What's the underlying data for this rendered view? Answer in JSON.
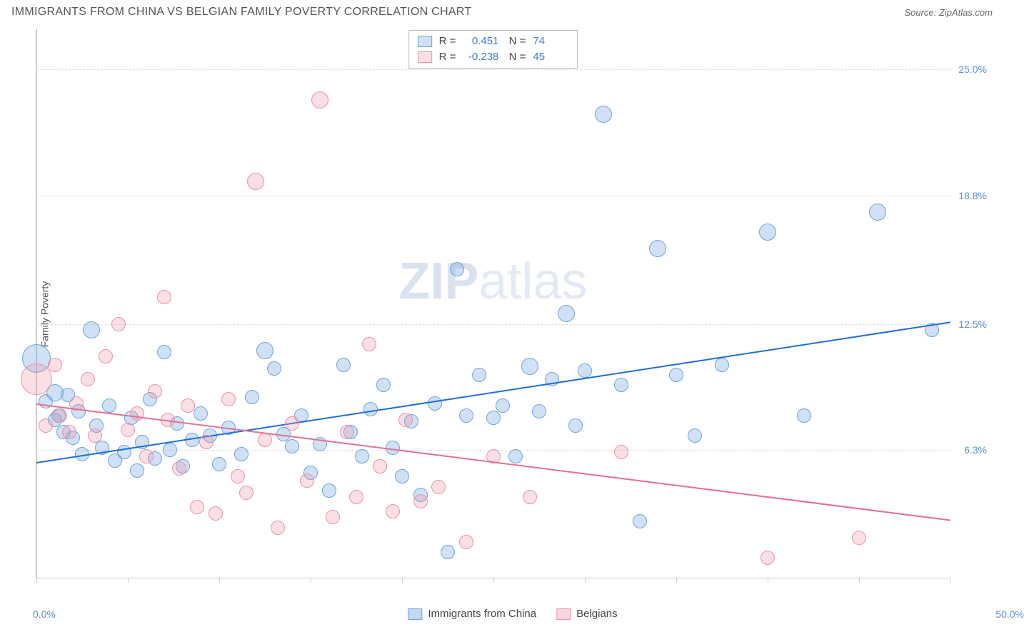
{
  "header": {
    "title": "IMMIGRANTS FROM CHINA VS BELGIAN FAMILY POVERTY CORRELATION CHART",
    "source_label": "Source: ",
    "source_value": "ZipAtlas.com"
  },
  "chart": {
    "type": "scatter",
    "ylabel": "Family Poverty",
    "xlim": [
      0,
      50
    ],
    "ylim": [
      0,
      27
    ],
    "xlim_labels": [
      "0.0%",
      "50.0%"
    ],
    "ytick_positions": [
      6.3,
      12.5,
      18.8,
      25.0
    ],
    "ytick_labels": [
      "6.3%",
      "12.5%",
      "18.8%",
      "25.0%"
    ],
    "xtick_positions": [
      0,
      5,
      10,
      15,
      20,
      25,
      30,
      35,
      40,
      45,
      50
    ],
    "background_color": "#ffffff",
    "grid_color": "#dddddd",
    "axis_color": "#cccccc",
    "tick_label_color": "#5b8fd6",
    "watermark": "ZIPatlas",
    "series": [
      {
        "name": "Immigrants from China",
        "fill_color": "rgba(120,170,225,0.35)",
        "stroke_color": "#6aa5de",
        "r_label": "R =",
        "r_value": "0.451",
        "n_label": "N =",
        "n_value": "74",
        "trend": {
          "x1": 0,
          "y1": 5.7,
          "x2": 50,
          "y2": 12.6,
          "color": "#1f6fd4",
          "width": 2
        },
        "points": [
          [
            0,
            10.8,
            20
          ],
          [
            0.5,
            8.7,
            10
          ],
          [
            1,
            9.1,
            12
          ],
          [
            1,
            7.8,
            10
          ],
          [
            1.2,
            8.0,
            10
          ],
          [
            1.5,
            7.2,
            10
          ],
          [
            1.7,
            9.0,
            10
          ],
          [
            2,
            6.9,
            10
          ],
          [
            2.3,
            8.2,
            10
          ],
          [
            2.5,
            6.1,
            10
          ],
          [
            3,
            12.2,
            12
          ],
          [
            3.3,
            7.5,
            10
          ],
          [
            3.6,
            6.4,
            10
          ],
          [
            4,
            8.5,
            10
          ],
          [
            4.3,
            5.8,
            10
          ],
          [
            4.8,
            6.2,
            10
          ],
          [
            5.2,
            7.9,
            10
          ],
          [
            5.5,
            5.3,
            10
          ],
          [
            5.8,
            6.7,
            10
          ],
          [
            6.2,
            8.8,
            10
          ],
          [
            6.5,
            5.9,
            10
          ],
          [
            7,
            11.1,
            10
          ],
          [
            7.3,
            6.3,
            10
          ],
          [
            7.7,
            7.6,
            10
          ],
          [
            8,
            5.5,
            10
          ],
          [
            8.5,
            6.8,
            10
          ],
          [
            9,
            8.1,
            10
          ],
          [
            9.5,
            7.0,
            10
          ],
          [
            10,
            5.6,
            10
          ],
          [
            10.5,
            7.4,
            10
          ],
          [
            11.2,
            6.1,
            10
          ],
          [
            11.8,
            8.9,
            10
          ],
          [
            12.5,
            11.2,
            12
          ],
          [
            13,
            10.3,
            10
          ],
          [
            13.5,
            7.1,
            10
          ],
          [
            14,
            6.5,
            10
          ],
          [
            14.5,
            8.0,
            10
          ],
          [
            15,
            5.2,
            10
          ],
          [
            15.5,
            6.6,
            10
          ],
          [
            16,
            4.3,
            10
          ],
          [
            16.8,
            10.5,
            10
          ],
          [
            17.2,
            7.2,
            10
          ],
          [
            17.8,
            6.0,
            10
          ],
          [
            18.3,
            8.3,
            10
          ],
          [
            19,
            9.5,
            10
          ],
          [
            19.5,
            6.4,
            10
          ],
          [
            20,
            5.0,
            10
          ],
          [
            20.5,
            7.7,
            10
          ],
          [
            21,
            4.1,
            10
          ],
          [
            21.8,
            8.6,
            10
          ],
          [
            22.5,
            1.3,
            10
          ],
          [
            23,
            15.2,
            10
          ],
          [
            23.5,
            8.0,
            10
          ],
          [
            24.2,
            10.0,
            10
          ],
          [
            25,
            7.9,
            10
          ],
          [
            25.5,
            8.5,
            10
          ],
          [
            26.2,
            6.0,
            10
          ],
          [
            27,
            10.4,
            12
          ],
          [
            27.5,
            8.2,
            10
          ],
          [
            28.2,
            9.8,
            10
          ],
          [
            29,
            13.0,
            12
          ],
          [
            29.5,
            7.5,
            10
          ],
          [
            30,
            10.2,
            10
          ],
          [
            31,
            22.8,
            12
          ],
          [
            32,
            9.5,
            10
          ],
          [
            33,
            2.8,
            10
          ],
          [
            34,
            16.2,
            12
          ],
          [
            35,
            10.0,
            10
          ],
          [
            36,
            7.0,
            10
          ],
          [
            37.5,
            10.5,
            10
          ],
          [
            40,
            17.0,
            12
          ],
          [
            42,
            8.0,
            10
          ],
          [
            46,
            18.0,
            12
          ],
          [
            49,
            12.2,
            10
          ]
        ]
      },
      {
        "name": "Belgians",
        "fill_color": "rgba(240,150,170,0.30)",
        "stroke_color": "#e893aa",
        "r_label": "R =",
        "r_value": "-0.238",
        "n_label": "N =",
        "n_value": "45",
        "trend": {
          "x1": 0,
          "y1": 8.6,
          "x2": 50,
          "y2": 2.9,
          "color": "#e4718f",
          "width": 2
        },
        "points": [
          [
            0,
            9.8,
            22
          ],
          [
            0.5,
            7.5,
            10
          ],
          [
            1,
            10.5,
            10
          ],
          [
            1.3,
            8.0,
            10
          ],
          [
            1.8,
            7.2,
            10
          ],
          [
            2.2,
            8.6,
            10
          ],
          [
            2.8,
            9.8,
            10
          ],
          [
            3.2,
            7.0,
            10
          ],
          [
            3.8,
            10.9,
            10
          ],
          [
            4.5,
            12.5,
            10
          ],
          [
            5,
            7.3,
            10
          ],
          [
            5.5,
            8.1,
            10
          ],
          [
            6,
            6.0,
            10
          ],
          [
            6.5,
            9.2,
            10
          ],
          [
            7,
            13.8,
            10
          ],
          [
            7.2,
            7.8,
            10
          ],
          [
            7.8,
            5.4,
            10
          ],
          [
            8.3,
            8.5,
            10
          ],
          [
            8.8,
            3.5,
            10
          ],
          [
            9.3,
            6.7,
            10
          ],
          [
            9.8,
            3.2,
            10
          ],
          [
            10.5,
            8.8,
            10
          ],
          [
            11,
            5.0,
            10
          ],
          [
            11.5,
            4.2,
            10
          ],
          [
            12,
            19.5,
            12
          ],
          [
            12.5,
            6.8,
            10
          ],
          [
            13.2,
            2.5,
            10
          ],
          [
            14,
            7.6,
            10
          ],
          [
            14.8,
            4.8,
            10
          ],
          [
            15.5,
            23.5,
            12
          ],
          [
            16.2,
            3.0,
            10
          ],
          [
            17,
            7.2,
            10
          ],
          [
            17.5,
            4.0,
            10
          ],
          [
            18.2,
            11.5,
            10
          ],
          [
            18.8,
            5.5,
            10
          ],
          [
            19.5,
            3.3,
            10
          ],
          [
            20.2,
            7.8,
            10
          ],
          [
            21,
            3.8,
            10
          ],
          [
            22,
            4.5,
            10
          ],
          [
            23.5,
            1.8,
            10
          ],
          [
            25,
            6.0,
            10
          ],
          [
            27,
            4.0,
            10
          ],
          [
            32,
            6.2,
            10
          ],
          [
            40,
            1.0,
            10
          ],
          [
            45,
            2.0,
            10
          ]
        ]
      }
    ],
    "bottom_legend": [
      {
        "label": "Immigrants from China",
        "fill": "rgba(120,170,225,0.45)",
        "stroke": "#6aa5de"
      },
      {
        "label": "Belgians",
        "fill": "rgba(240,150,170,0.40)",
        "stroke": "#e893aa"
      }
    ]
  }
}
